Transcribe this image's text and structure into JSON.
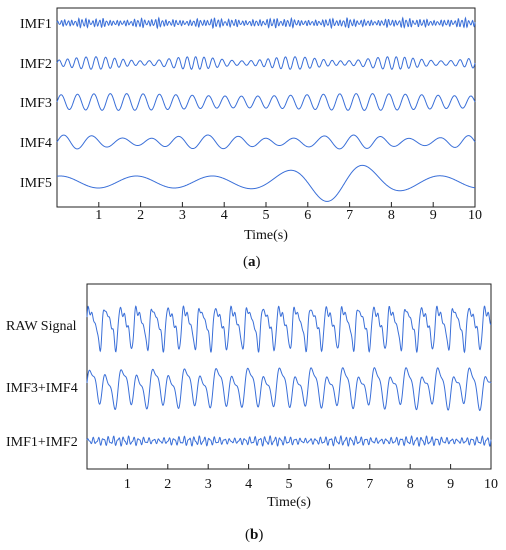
{
  "panels": [
    {
      "caption_open": "(",
      "caption_letter": "a",
      "caption_close": ")",
      "chart_data": {
        "type": "line",
        "title": "",
        "xlabel": "Time(s)",
        "ylabel": "",
        "xlim": [
          0,
          10
        ],
        "xticks": [
          "1",
          "2",
          "3",
          "4",
          "5",
          "6",
          "7",
          "8",
          "9",
          "10"
        ],
        "grid": false,
        "legend": "none",
        "series": [
          {
            "name": "IMF1",
            "color": "#3a6fd8",
            "freq_hz": 12.0,
            "amplitude": 0.25,
            "shape": "high-frequency burst noise"
          },
          {
            "name": "IMF2",
            "color": "#3a6fd8",
            "freq_hz": 4.6,
            "amplitude": 0.45,
            "shape": "bursty oscillation"
          },
          {
            "name": "IMF3",
            "color": "#3a6fd8",
            "freq_hz": 2.55,
            "amplitude": 0.6,
            "shape": "regular oscillation"
          },
          {
            "name": "IMF4",
            "color": "#3a6fd8",
            "freq_hz": 1.45,
            "amplitude": 0.5,
            "shape": "modulated oscillation"
          },
          {
            "name": "IMF5",
            "color": "#3a6fd8",
            "freq_hz": 0.55,
            "amplitude": 1.0,
            "shape": "low-frequency, large swings near 6-8 s"
          }
        ]
      }
    },
    {
      "caption_open": "(",
      "caption_letter": "b",
      "caption_close": ")",
      "chart_data": {
        "type": "line",
        "title": "",
        "xlabel": "Time(s)",
        "ylabel": "",
        "xlim": [
          0,
          10
        ],
        "xticks": [
          "1",
          "2",
          "3",
          "4",
          "5",
          "6",
          "7",
          "8",
          "9",
          "10"
        ],
        "grid": false,
        "legend": "none",
        "series": [
          {
            "name": "RAW Signal",
            "color": "#3a6fd8",
            "freq_hz": 2.55,
            "amplitude": 1.0,
            "shape": "sharp periodic spikes"
          },
          {
            "name": "IMF3+IMF4",
            "color": "#3a6fd8",
            "freq_hz": 2.55,
            "amplitude": 0.85,
            "shape": "smooth periodic oscillation"
          },
          {
            "name": "IMF1+IMF2",
            "color": "#3a6fd8",
            "freq_hz": 8.0,
            "amplitude": 0.35,
            "shape": "high-frequency noise"
          }
        ]
      }
    }
  ]
}
